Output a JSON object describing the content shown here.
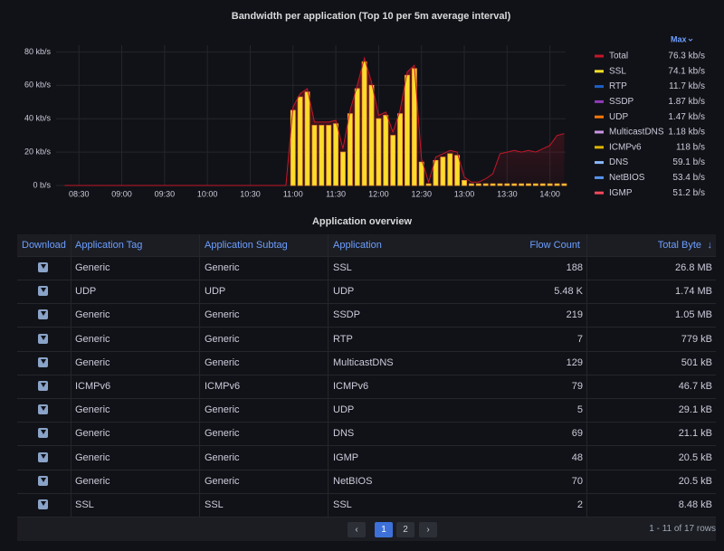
{
  "chart_data": {
    "type": "timeseries",
    "title": "Bandwidth per application (Top 10 per 5m average interval)",
    "x": [
      500,
      655,
      660,
      665,
      670,
      675,
      680,
      685,
      690,
      695,
      700,
      705,
      710,
      715,
      720,
      725,
      730,
      735,
      740,
      745,
      750,
      755,
      760,
      765,
      770,
      775,
      780,
      785,
      790,
      795,
      800,
      805,
      810,
      815,
      820,
      825,
      830,
      835,
      840,
      845,
      850
    ],
    "xlim": [
      494,
      851
    ],
    "xticks": [
      {
        "value": 510,
        "label": "08:30"
      },
      {
        "value": 540,
        "label": "09:00"
      },
      {
        "value": 570,
        "label": "09:30"
      },
      {
        "value": 600,
        "label": "10:00"
      },
      {
        "value": 630,
        "label": "10:30"
      },
      {
        "value": 660,
        "label": "11:00"
      },
      {
        "value": 690,
        "label": "11:30"
      },
      {
        "value": 720,
        "label": "12:00"
      },
      {
        "value": 750,
        "label": "12:30"
      },
      {
        "value": 780,
        "label": "13:00"
      },
      {
        "value": 810,
        "label": "13:30"
      },
      {
        "value": 840,
        "label": "14:00"
      }
    ],
    "ylim": [
      0,
      84
    ],
    "yticks": [
      {
        "value": 0,
        "label": "0 b/s"
      },
      {
        "value": 20,
        "label": "20 kb/s"
      },
      {
        "value": 40,
        "label": "40 kb/s"
      },
      {
        "value": 60,
        "label": "60 kb/s"
      },
      {
        "value": 80,
        "label": "80 kb/s"
      }
    ],
    "grid": true,
    "legend_header": "Max",
    "series": [
      {
        "name": "Total",
        "color": "#c4162a",
        "style": "area",
        "max": "76.3 kb/s",
        "values": [
          0,
          0,
          47,
          55,
          58,
          38,
          38,
          38,
          39,
          22,
          45,
          60,
          76.3,
          62,
          42,
          44,
          32,
          45,
          68,
          72,
          16,
          2,
          17,
          19,
          21,
          20,
          5,
          2,
          2,
          4,
          7,
          19,
          20,
          21,
          20,
          21,
          20,
          22,
          24,
          30,
          31
        ]
      },
      {
        "name": "SSL",
        "color": "#fade2a",
        "style": "bars",
        "max": "74.1 kb/s",
        "values": [
          null,
          null,
          45,
          53,
          56,
          36,
          36,
          36,
          37,
          20,
          43,
          58,
          74.1,
          60,
          40,
          42,
          30,
          43,
          66,
          70,
          14,
          1,
          15,
          17,
          19,
          18,
          3,
          1,
          1,
          1,
          1,
          1,
          1,
          1,
          1,
          1,
          1,
          1,
          1,
          1,
          1
        ]
      },
      {
        "name": "RTP",
        "color": "#1f60c4",
        "max": "11.7 kb/s"
      },
      {
        "name": "SSDP",
        "color": "#8f3bb8",
        "max": "1.87 kb/s"
      },
      {
        "name": "UDP",
        "color": "#ff780a",
        "max": "1.47 kb/s"
      },
      {
        "name": "MulticastDNS",
        "color": "#ca95e5",
        "max": "1.18 kb/s"
      },
      {
        "name": "ICMPv6",
        "color": "#e0b400",
        "max": "118 b/s"
      },
      {
        "name": "DNS",
        "color": "#8ab8ff",
        "max": "59.1 b/s"
      },
      {
        "name": "NetBIOS",
        "color": "#5794f2",
        "max": "53.4 b/s"
      },
      {
        "name": "IGMP",
        "color": "#f2495c",
        "max": "51.2 b/s"
      }
    ]
  },
  "table": {
    "title": "Application overview",
    "headers": [
      "Download",
      "Application Tag",
      "Application Subtag",
      "Application",
      "Flow Count",
      "Total Byte"
    ],
    "rows": [
      [
        "Generic",
        "Generic",
        "SSL",
        188,
        "26.8 MB"
      ],
      [
        "UDP",
        "UDP",
        "UDP",
        "5.48 K",
        "1.74 MB"
      ],
      [
        "Generic",
        "Generic",
        "SSDP",
        219,
        "1.05 MB"
      ],
      [
        "Generic",
        "Generic",
        "RTP",
        7,
        "779 kB"
      ],
      [
        "Generic",
        "Generic",
        "MulticastDNS",
        129,
        "501 kB"
      ],
      [
        "ICMPv6",
        "ICMPv6",
        "ICMPv6",
        79,
        "46.7 kB"
      ],
      [
        "Generic",
        "Generic",
        "UDP",
        5,
        "29.1 kB"
      ],
      [
        "Generic",
        "Generic",
        "DNS",
        69,
        "21.1 kB"
      ],
      [
        "Generic",
        "Generic",
        "IGMP",
        48,
        "20.5 kB"
      ],
      [
        "Generic",
        "Generic",
        "NetBIOS",
        70,
        "20.5 kB"
      ],
      [
        "SSL",
        "SSL",
        "SSL",
        2,
        "8.48 kB"
      ]
    ],
    "pages": [
      1,
      2
    ],
    "current_page": 1,
    "summary": "1 - 11 of 17 rows"
  }
}
